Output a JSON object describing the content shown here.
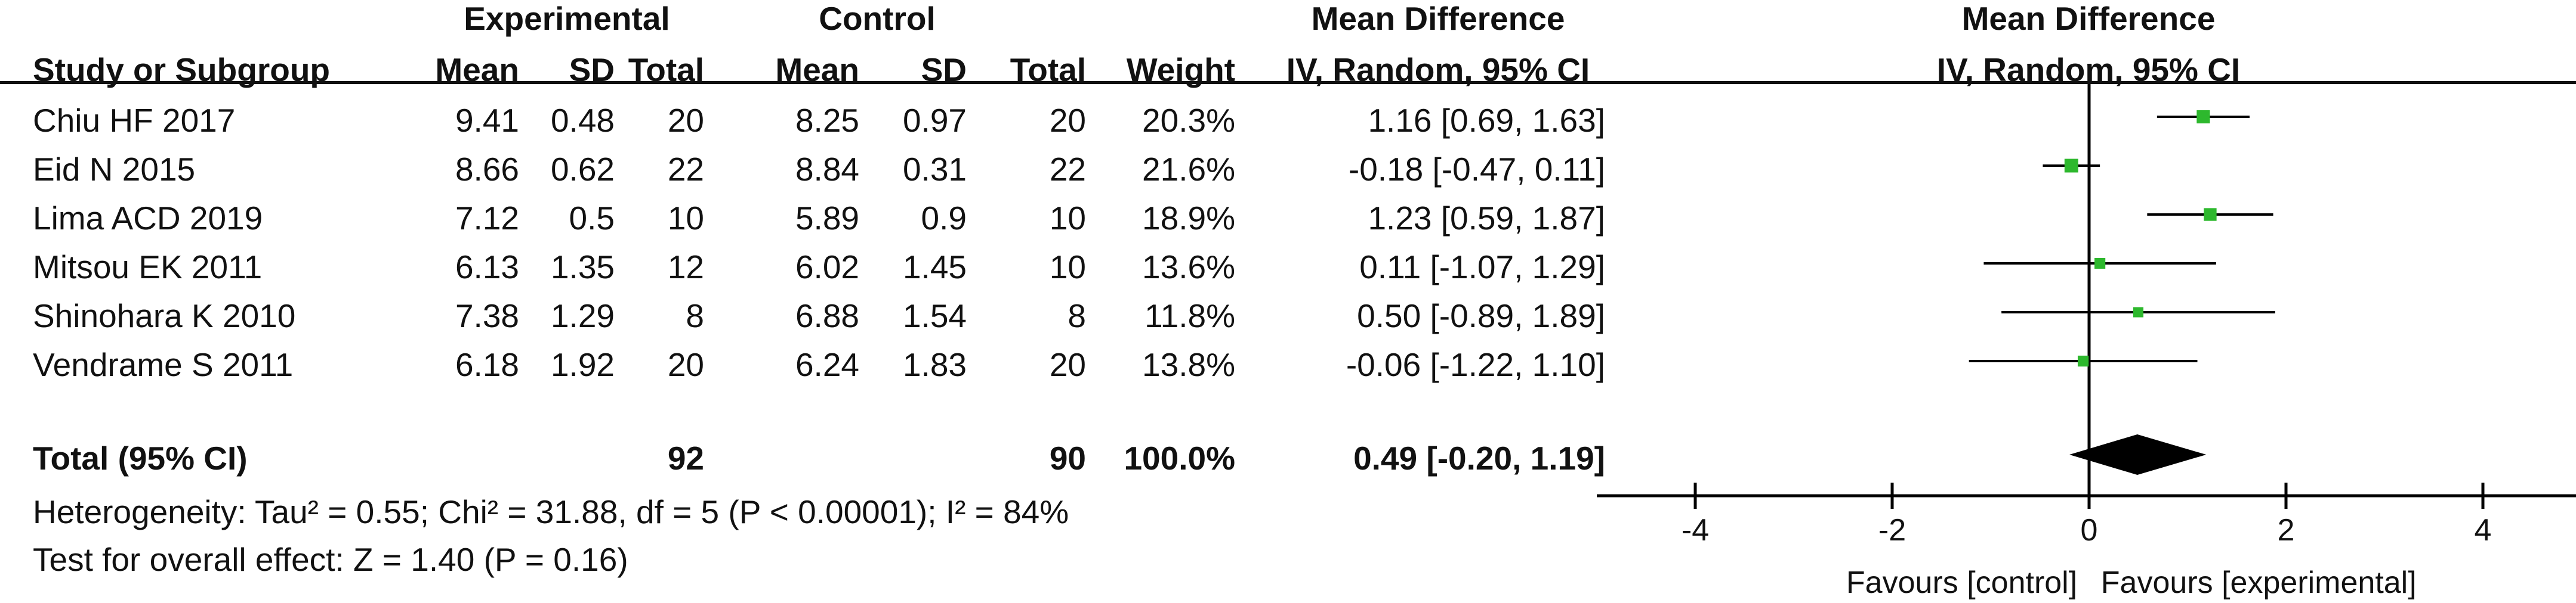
{
  "headers": {
    "experimental": "Experimental",
    "control": "Control",
    "mean_difference": "Mean Difference",
    "mean_difference_plot": "Mean Difference",
    "study": "Study or Subgroup",
    "exp_mean": "Mean",
    "exp_sd": "SD",
    "exp_total": "Total",
    "ctl_mean": "Mean",
    "ctl_sd": "SD",
    "ctl_total": "Total",
    "weight": "Weight",
    "method": "IV, Random, 95% CI",
    "method_plot": "IV, Random, 95% CI"
  },
  "rows": [
    {
      "study": "Chiu HF 2017",
      "exp_mean": "9.41",
      "exp_sd": "0.48",
      "exp_total": "20",
      "ctl_mean": "8.25",
      "ctl_sd": "0.97",
      "ctl_total": "20",
      "weight": "20.3%",
      "ci": "1.16 [0.69, 1.63]"
    },
    {
      "study": "Eid N 2015",
      "exp_mean": "8.66",
      "exp_sd": "0.62",
      "exp_total": "22",
      "ctl_mean": "8.84",
      "ctl_sd": "0.31",
      "ctl_total": "22",
      "weight": "21.6%",
      "ci": "-0.18 [-0.47, 0.11]"
    },
    {
      "study": "Lima ACD 2019",
      "exp_mean": "7.12",
      "exp_sd": "0.5",
      "exp_total": "10",
      "ctl_mean": "5.89",
      "ctl_sd": "0.9",
      "ctl_total": "10",
      "weight": "18.9%",
      "ci": "1.23 [0.59, 1.87]"
    },
    {
      "study": "Mitsou EK 2011",
      "exp_mean": "6.13",
      "exp_sd": "1.35",
      "exp_total": "12",
      "ctl_mean": "6.02",
      "ctl_sd": "1.45",
      "ctl_total": "10",
      "weight": "13.6%",
      "ci": "0.11 [-1.07, 1.29]"
    },
    {
      "study": "Shinohara K 2010",
      "exp_mean": "7.38",
      "exp_sd": "1.29",
      "exp_total": "8",
      "ctl_mean": "6.88",
      "ctl_sd": "1.54",
      "ctl_total": "8",
      "weight": "11.8%",
      "ci": "0.50 [-0.89, 1.89]"
    },
    {
      "study": "Vendrame S 2011",
      "exp_mean": "6.18",
      "exp_sd": "1.92",
      "exp_total": "20",
      "ctl_mean": "6.24",
      "ctl_sd": "1.83",
      "ctl_total": "20",
      "weight": "13.8%",
      "ci": "-0.06 [-1.22, 1.10]"
    }
  ],
  "total": {
    "label": "Total (95% CI)",
    "exp_total": "92",
    "ctl_total": "90",
    "weight": "100.0%",
    "ci": "0.49 [-0.20, 1.19]"
  },
  "heterogeneity": "Heterogeneity: Tau² = 0.55; Chi² = 31.88, df = 5 (P < 0.00001); I² = 84%",
  "overall_effect": "Test for overall effect: Z = 1.40 (P = 0.16)",
  "favours_left": "Favours [control]",
  "favours_right": "Favours [experimental]",
  "colors": {
    "marker": "#2db82d",
    "diamond": "#000000",
    "line": "#000000"
  },
  "chart_data": {
    "type": "scatter",
    "subtype": "forest-plot",
    "xlim": [
      -5,
      5
    ],
    "x_ticks": [
      -4,
      -2,
      0,
      2,
      4
    ],
    "reference_line": 0,
    "series": [
      {
        "points": [
          {
            "label": "Chiu HF 2017",
            "estimate": 1.16,
            "lower": 0.69,
            "upper": 1.63,
            "weight": 20.3
          },
          {
            "label": "Eid N 2015",
            "estimate": -0.18,
            "lower": -0.47,
            "upper": 0.11,
            "weight": 21.6
          },
          {
            "label": "Lima ACD 2019",
            "estimate": 1.23,
            "lower": 0.59,
            "upper": 1.87,
            "weight": 18.9
          },
          {
            "label": "Mitsou EK 2011",
            "estimate": 0.11,
            "lower": -1.07,
            "upper": 1.29,
            "weight": 13.6
          },
          {
            "label": "Shinohara K 2010",
            "estimate": 0.5,
            "lower": -0.89,
            "upper": 1.89,
            "weight": 11.8
          },
          {
            "label": "Vendrame S 2011",
            "estimate": -0.06,
            "lower": -1.22,
            "upper": 1.1,
            "weight": 13.8
          }
        ]
      }
    ],
    "pooled": {
      "label": "Total (95% CI)",
      "estimate": 0.49,
      "lower": -0.2,
      "upper": 1.19
    },
    "xlabel_left": "Favours [control]",
    "xlabel_right": "Favours [experimental]"
  }
}
